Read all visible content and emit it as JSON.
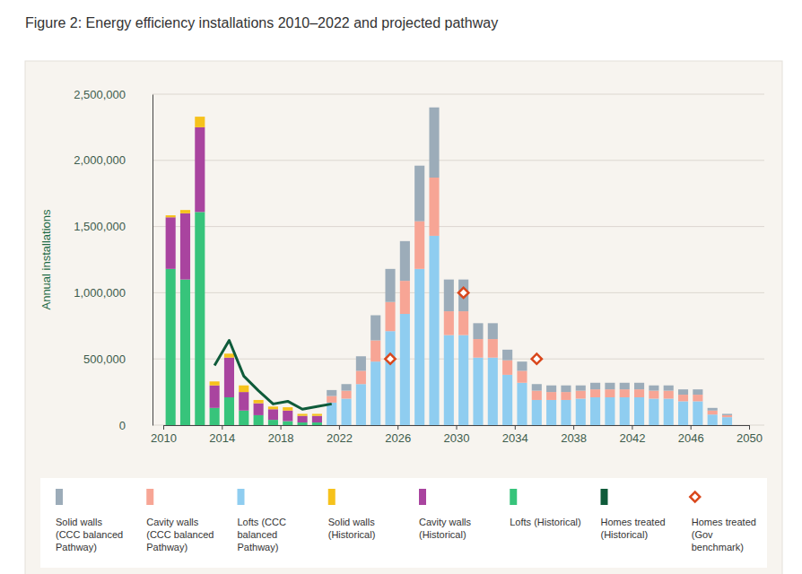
{
  "chart_data": {
    "type": "bar",
    "title": "Figure 2: Energy efficiency installations 2010–2022 and projected pathway",
    "y_label": "Annual installations",
    "x": [
      2010,
      2011,
      2012,
      2013,
      2014,
      2015,
      2016,
      2017,
      2018,
      2019,
      2020,
      2021,
      2022,
      2023,
      2024,
      2025,
      2026,
      2027,
      2028,
      2029,
      2030,
      2031,
      2032,
      2033,
      2034,
      2035,
      2036,
      2037,
      2038,
      2039,
      2040,
      2041,
      2042,
      2043,
      2044,
      2045,
      2046,
      2047,
      2048
    ],
    "xlim": [
      2010,
      2050
    ],
    "xticks": [
      2010,
      2014,
      2018,
      2022,
      2026,
      2030,
      2034,
      2038,
      2042,
      2046,
      2050
    ],
    "ylim": [
      0,
      2500000
    ],
    "yticks": [
      0,
      {
        "value": 500000,
        "label": "500,000"
      },
      {
        "value": 1000000,
        "label": "1,000,000"
      },
      {
        "value": 1500000,
        "label": "1,500,000"
      },
      {
        "value": 2000000,
        "label": "2,000,000"
      },
      {
        "value": 2500000,
        "label": "2,500,000"
      }
    ],
    "grid": true,
    "stacked": true,
    "legend": "bottom",
    "series": [
      {
        "name": "Solid walls (CCC balanced Pathway)",
        "type": "bar",
        "color": "#9cacb9",
        "values": [
          null,
          null,
          null,
          null,
          null,
          null,
          null,
          null,
          null,
          null,
          null,
          45000,
          50000,
          110000,
          190000,
          250000,
          300000,
          420000,
          530000,
          240000,
          240000,
          120000,
          120000,
          80000,
          70000,
          50000,
          50000,
          50000,
          40000,
          50000,
          50000,
          50000,
          50000,
          40000,
          40000,
          40000,
          40000,
          20000,
          10000
        ]
      },
      {
        "name": "Cavity walls (CCC balanced Pathway)",
        "type": "bar",
        "color": "#f7a595",
        "values": [
          null,
          null,
          null,
          null,
          null,
          null,
          null,
          null,
          null,
          null,
          null,
          50000,
          60000,
          100000,
          160000,
          220000,
          250000,
          360000,
          440000,
          180000,
          180000,
          140000,
          140000,
          110000,
          90000,
          70000,
          60000,
          60000,
          60000,
          60000,
          60000,
          60000,
          60000,
          60000,
          60000,
          50000,
          50000,
          30000,
          15000
        ]
      },
      {
        "name": "Lofts (CCC balanced Pathway)",
        "type": "bar",
        "color": "#8fcdf0",
        "values": [
          null,
          null,
          null,
          null,
          null,
          null,
          null,
          null,
          null,
          null,
          null,
          170000,
          200000,
          310000,
          480000,
          710000,
          840000,
          1180000,
          1430000,
          680000,
          680000,
          510000,
          510000,
          380000,
          320000,
          190000,
          190000,
          190000,
          200000,
          210000,
          210000,
          210000,
          210000,
          200000,
          200000,
          180000,
          180000,
          80000,
          60000
        ]
      },
      {
        "name": "Solid walls (Historical)",
        "type": "bar",
        "color": "#f6c21c",
        "values": [
          15000,
          25000,
          80000,
          30000,
          30000,
          50000,
          25000,
          20000,
          25000,
          15000,
          15000,
          null,
          null,
          null,
          null,
          null,
          null,
          null,
          null,
          null,
          null,
          null,
          null,
          null,
          null,
          null,
          null,
          null,
          null,
          null,
          null,
          null,
          null,
          null,
          null,
          null,
          null,
          null,
          null
        ]
      },
      {
        "name": "Cavity walls (Historical)",
        "type": "bar",
        "color": "#a9449f",
        "values": [
          390000,
          500000,
          640000,
          170000,
          300000,
          140000,
          90000,
          80000,
          80000,
          50000,
          50000,
          null,
          null,
          null,
          null,
          null,
          null,
          null,
          null,
          null,
          null,
          null,
          null,
          null,
          null,
          null,
          null,
          null,
          null,
          null,
          null,
          null,
          null,
          null,
          null,
          null,
          null,
          null,
          null
        ]
      },
      {
        "name": "Lofts (Historical)",
        "type": "bar",
        "color": "#37c47b",
        "values": [
          1180000,
          1100000,
          1610000,
          130000,
          210000,
          110000,
          75000,
          40000,
          30000,
          20000,
          20000,
          null,
          null,
          null,
          null,
          null,
          null,
          null,
          null,
          null,
          null,
          null,
          null,
          null,
          null,
          null,
          null,
          null,
          null,
          null,
          null,
          null,
          null,
          null,
          null,
          null,
          null,
          null,
          null
        ]
      },
      {
        "name": "Homes treated (Historical)",
        "type": "line",
        "color": "#0f5b3a",
        "line_style": "solid",
        "values": [
          null,
          null,
          null,
          450000,
          640000,
          370000,
          260000,
          160000,
          180000,
          120000,
          140000,
          160000,
          null,
          null,
          null,
          null,
          null,
          null,
          null,
          null,
          null,
          null,
          null,
          null,
          null,
          null,
          null,
          null,
          null,
          null,
          null,
          null,
          null,
          null,
          null,
          null,
          null,
          null,
          null
        ]
      },
      {
        "name": "Homes treated (Gov benchmark)",
        "type": "scatter",
        "color": "#d9471c",
        "marker": "diamond",
        "values": [
          null,
          null,
          null,
          null,
          null,
          null,
          null,
          null,
          null,
          null,
          null,
          null,
          null,
          null,
          null,
          500000,
          null,
          null,
          null,
          null,
          1000000,
          null,
          null,
          null,
          null,
          500000,
          null,
          null,
          null,
          null,
          null,
          null,
          null,
          null,
          null,
          null,
          null,
          null,
          null
        ]
      }
    ]
  }
}
